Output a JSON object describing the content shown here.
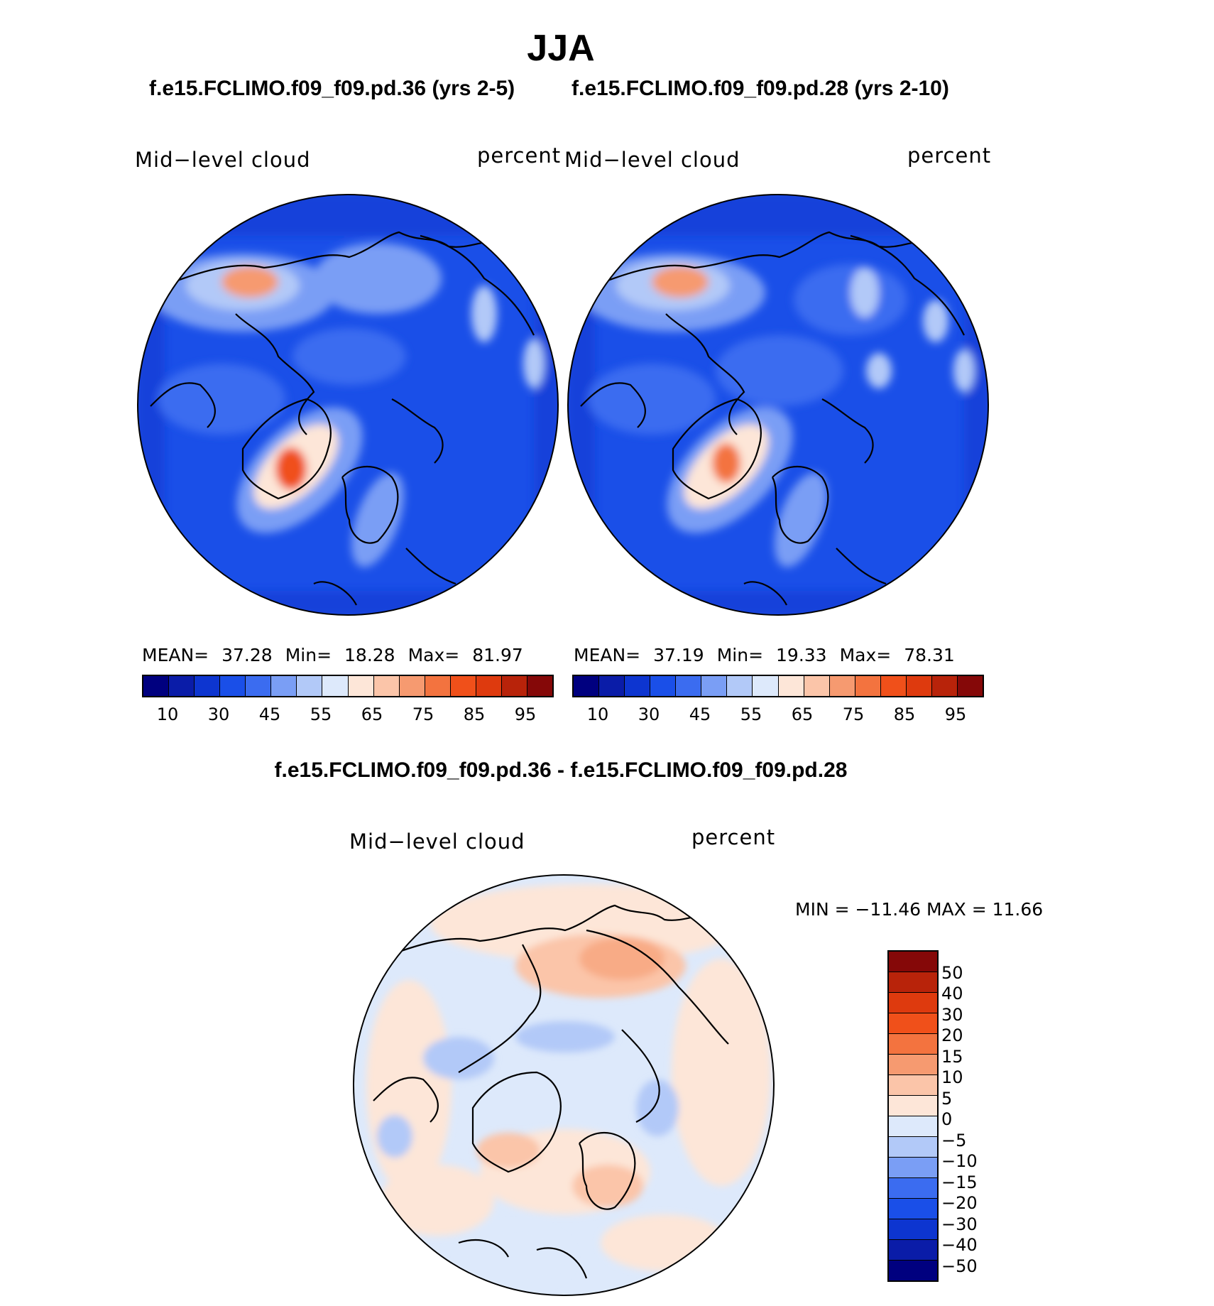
{
  "title": "JJA",
  "panels": [
    {
      "case": "f.e15.FCLIMO.f09_f09.pd.36 (yrs 2-5)",
      "variable": "Mid−level cloud",
      "units": "percent",
      "stats": {
        "mean_label": "MEAN=",
        "mean": "37.28",
        "min_label": "Min=",
        "min": "18.28",
        "max_label": "Max=",
        "max": "81.97"
      }
    },
    {
      "case": "f.e15.FCLIMO.f09_f09.pd.28 (yrs 2-10)",
      "variable": "Mid−level cloud",
      "units": "percent",
      "stats": {
        "mean_label": "MEAN=",
        "mean": "37.19",
        "min_label": "Min=",
        "min": "19.33",
        "max_label": "Max=",
        "max": "78.31"
      }
    }
  ],
  "colorbar": {
    "ticks": [
      "10",
      "30",
      "45",
      "55",
      "65",
      "75",
      "85",
      "95"
    ],
    "colors": [
      "#00007f",
      "#0a1ca8",
      "#0d35d0",
      "#1a4fe8",
      "#3b6cf0",
      "#7a9ef5",
      "#b2c9f8",
      "#dde9fb",
      "#fde6d8",
      "#fbc5a9",
      "#f69a70",
      "#f3733f",
      "#f0501a",
      "#de3a0e",
      "#b8230a",
      "#850808"
    ]
  },
  "difference": {
    "title": "f.e15.FCLIMO.f09_f09.pd.36 - f.e15.FCLIMO.f09_f09.pd.28",
    "variable": "Mid−level cloud",
    "units": "percent",
    "minmax": "MIN = −11.46 MAX =  11.66",
    "colorbar_labels": [
      "50",
      "40",
      "30",
      "20",
      "15",
      "10",
      "5",
      "0",
      "−5",
      "−10",
      "−15",
      "−20",
      "−30",
      "−40",
      "−50"
    ],
    "colorbar_colors": [
      "#850808",
      "#b8230a",
      "#de3a0e",
      "#f0501a",
      "#f3733f",
      "#f69a70",
      "#fbc5a9",
      "#fde6d8",
      "#dde9fb",
      "#b2c9f8",
      "#7a9ef5",
      "#3b6cf0",
      "#1a4fe8",
      "#0d35d0",
      "#0a1ca8",
      "#00007f"
    ]
  }
}
